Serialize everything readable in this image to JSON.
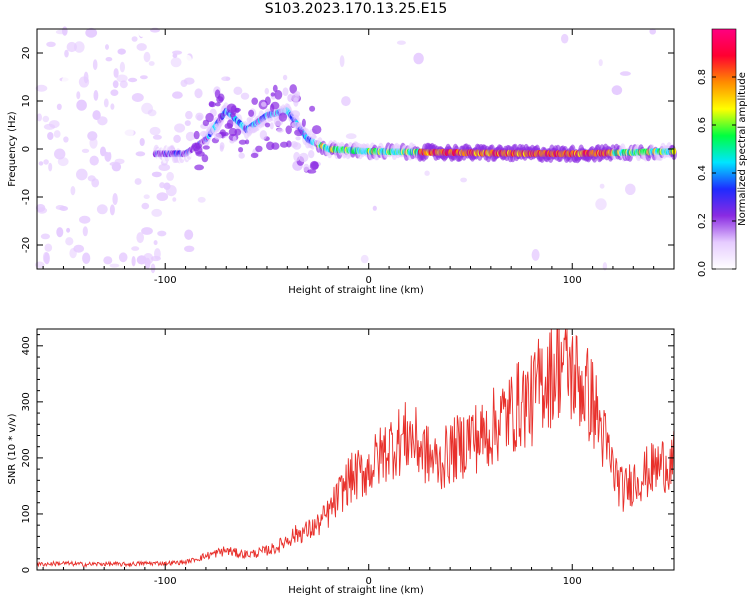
{
  "title": "S103.2023.170.13.25.E15",
  "colors": {
    "snr_line": "#e8302b",
    "axis": "#000000",
    "background": "#ffffff"
  },
  "chart_data": [
    {
      "type": "heatmap",
      "xlabel": "Height of straight line (km)",
      "ylabel": "Frequency (Hz)",
      "xlim": [
        -163,
        150
      ],
      "ylim": [
        -25,
        25
      ],
      "x_ticks": [
        -100,
        0,
        100
      ],
      "y_ticks": [
        -20,
        -10,
        0,
        10,
        20
      ],
      "colorbar": {
        "label": "Normalized spectral amplitude",
        "range": [
          0.0,
          1.0
        ],
        "ticks": [
          "0.0",
          "0.2",
          "0.4",
          "0.6",
          "0.8"
        ],
        "colormap": [
          "#ffffff",
          "#e6ccff",
          "#8a2be2",
          "#1e2bff",
          "#00e5ff",
          "#00ff40",
          "#ffff00",
          "#ff8c00",
          "#ff0030",
          "#ff0080"
        ]
      },
      "ridge": {
        "description_points": [
          {
            "x": -100,
            "y": -1
          },
          {
            "x": -90,
            "y": -1
          },
          {
            "x": -80,
            "y": 2
          },
          {
            "x": -70,
            "y": 8
          },
          {
            "x": -60,
            "y": 4
          },
          {
            "x": -50,
            "y": 7
          },
          {
            "x": -40,
            "y": 8
          },
          {
            "x": -30,
            "y": 2
          },
          {
            "x": -20,
            "y": 0
          },
          {
            "x": 0,
            "y": -0.5
          },
          {
            "x": 50,
            "y": -0.8
          },
          {
            "x": 100,
            "y": -1
          },
          {
            "x": 150,
            "y": -0.5
          }
        ]
      },
      "grid": false
    },
    {
      "type": "line",
      "xlabel": "Height of straight line (km)",
      "ylabel": "SNR (10 * v/v)",
      "xlim": [
        -163,
        150
      ],
      "ylim": [
        0,
        430
      ],
      "x_ticks": [
        -100,
        0,
        100
      ],
      "y_ticks": [
        0,
        100,
        200,
        300,
        400
      ],
      "series": [
        {
          "x": [
            -163,
            -150,
            -140,
            -130,
            -120,
            -110,
            -100,
            -90,
            -80,
            -75,
            -70,
            -65,
            -60,
            -55,
            -50,
            -45,
            -40,
            -35,
            -30,
            -25,
            -20,
            -15,
            -10,
            -5,
            0,
            5,
            10,
            15,
            20,
            25,
            30,
            35,
            40,
            45,
            50,
            55,
            60,
            65,
            70,
            75,
            80,
            85,
            90,
            95,
            100,
            105,
            110,
            115,
            120,
            125,
            130,
            135,
            140,
            145,
            150
          ],
          "values": [
            10,
            12,
            10,
            11,
            10,
            12,
            12,
            14,
            25,
            30,
            35,
            30,
            28,
            30,
            35,
            40,
            55,
            65,
            70,
            80,
            100,
            130,
            160,
            170,
            180,
            200,
            220,
            230,
            240,
            220,
            200,
            190,
            210,
            220,
            240,
            235,
            250,
            270,
            280,
            300,
            300,
            340,
            350,
            380,
            350,
            330,
            300,
            240,
            180,
            140,
            160,
            170,
            180,
            190,
            195
          ]
        }
      ],
      "grid": false
    }
  ]
}
